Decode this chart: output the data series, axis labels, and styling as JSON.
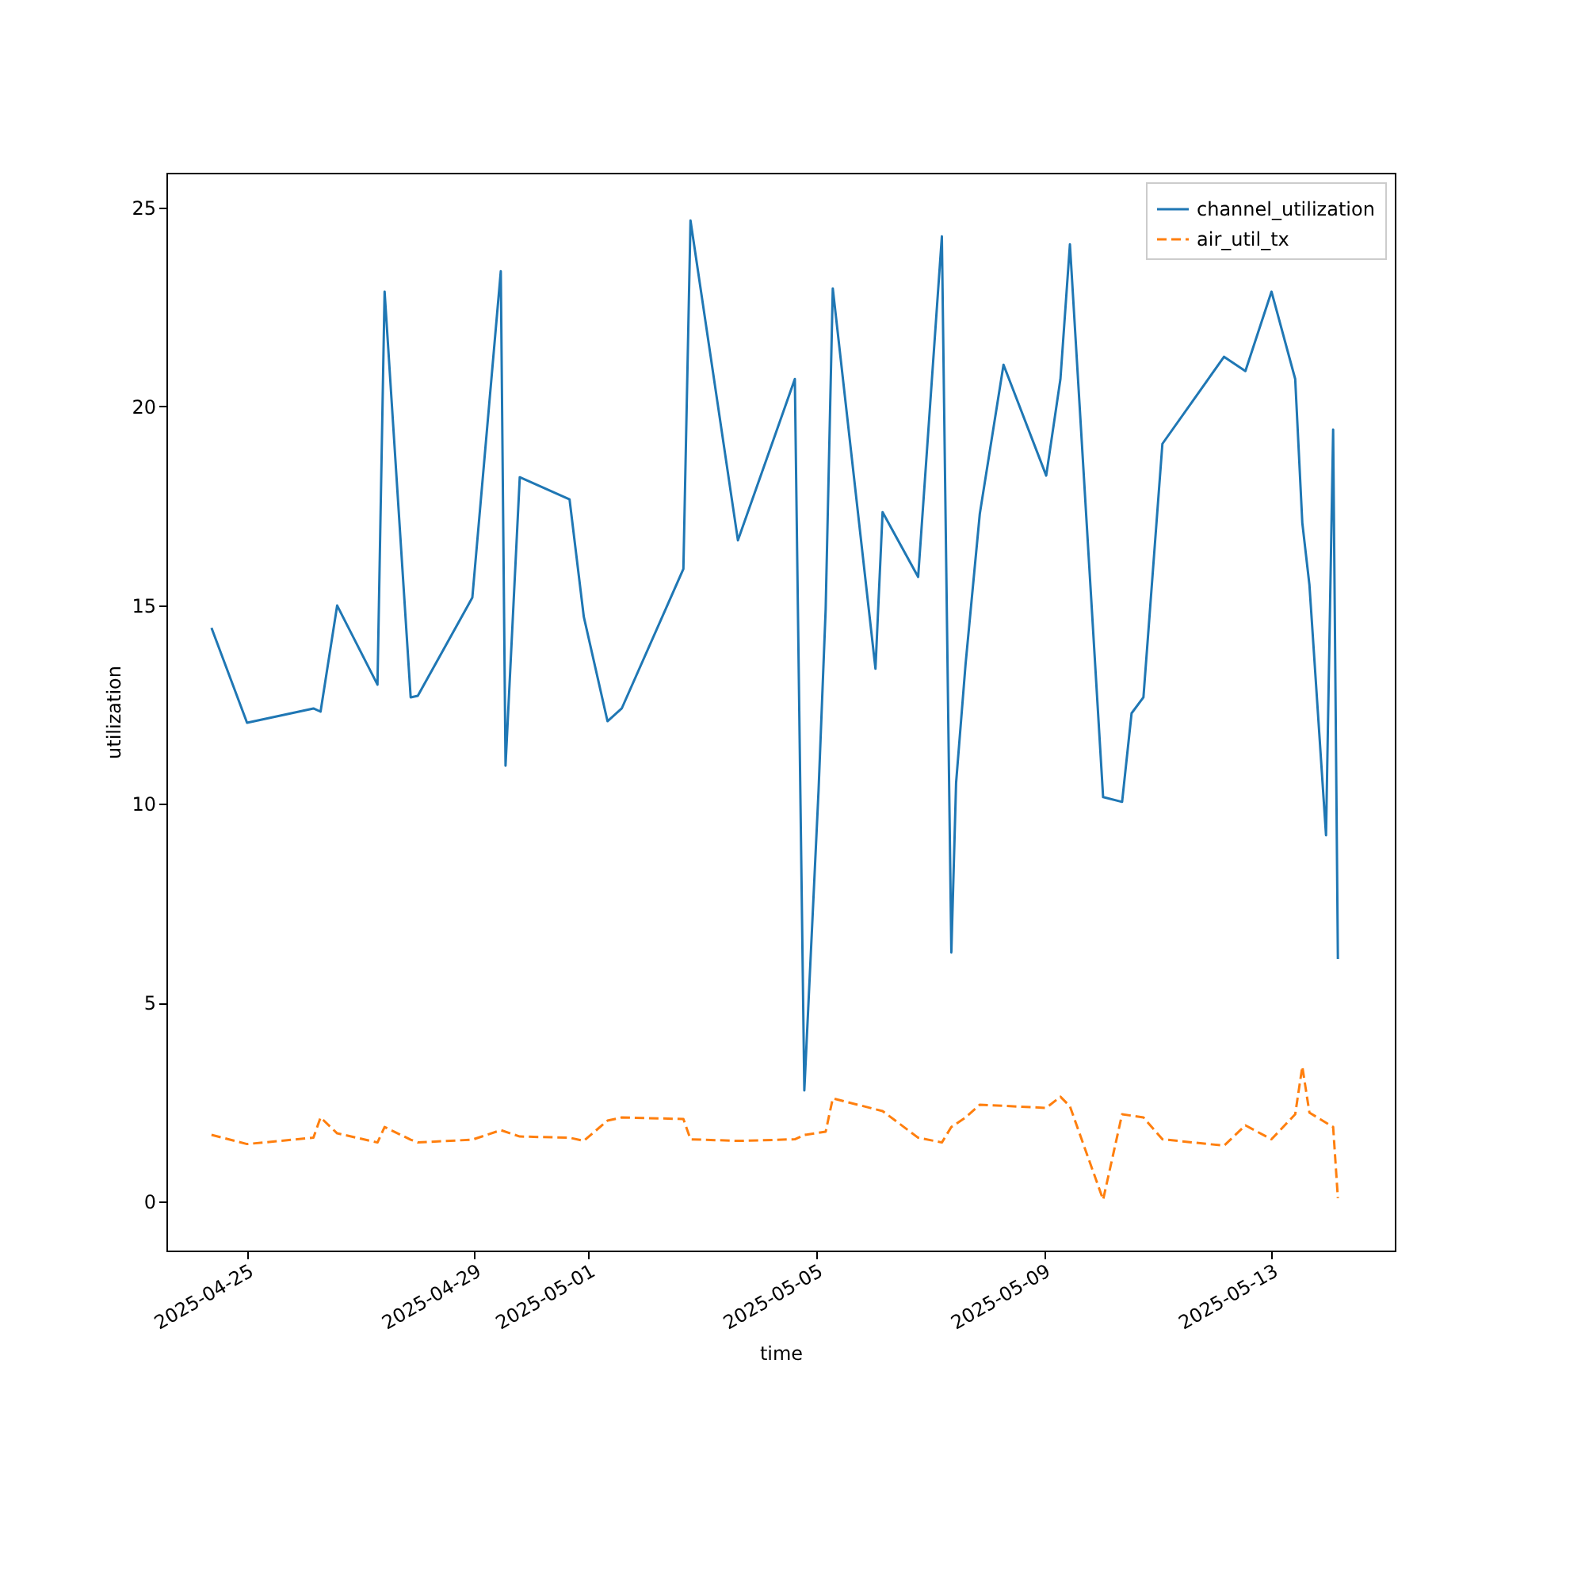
{
  "chart_data": {
    "type": "line",
    "xlabel": "time",
    "ylabel": "utilization",
    "legend": "top right",
    "grid": false,
    "xlim": [
      "2025-04-23T14:00",
      "2025-05-15T04:00"
    ],
    "ylim": [
      -1.24,
      25.88
    ],
    "xticks": [
      {
        "value": "2025-04-25",
        "label": "2025-04-25"
      },
      {
        "value": "2025-04-29",
        "label": "2025-04-29"
      },
      {
        "value": "2025-05-01",
        "label": "2025-05-01"
      },
      {
        "value": "2025-05-05",
        "label": "2025-05-05"
      },
      {
        "value": "2025-05-09",
        "label": "2025-05-09"
      },
      {
        "value": "2025-05-13",
        "label": "2025-05-13"
      }
    ],
    "yticks": [
      0,
      5,
      10,
      15,
      20,
      25
    ],
    "series": [
      {
        "name": "channel_utilization",
        "color": "#1f77b4",
        "line_style": "solid",
        "x": [
          "2025-04-24T09:00",
          "2025-04-25T00:00",
          "2025-04-26T04:00",
          "2025-04-26T07:00",
          "2025-04-26T14:00",
          "2025-04-27T07:00",
          "2025-04-27T10:00",
          "2025-04-27T21:00",
          "2025-04-28T00:00",
          "2025-04-28T23:00",
          "2025-04-29T11:00",
          "2025-04-29T13:00",
          "2025-04-29T19:00",
          "2025-04-30T16:00",
          "2025-04-30T22:00",
          "2025-05-01T08:00",
          "2025-05-01T14:00",
          "2025-05-02T16:00",
          "2025-05-02T19:00",
          "2025-05-03T15:00",
          "2025-05-04T15:00",
          "2025-05-04T19:00",
          "2025-05-05T01:00",
          "2025-05-05T04:00",
          "2025-05-05T07:00",
          "2025-05-06T01:00",
          "2025-05-06T04:00",
          "2025-05-06T19:00",
          "2025-05-07T05:00",
          "2025-05-07T09:00",
          "2025-05-07T11:00",
          "2025-05-07T15:00",
          "2025-05-07T21:00",
          "2025-05-08T07:00",
          "2025-05-09T01:00",
          "2025-05-09T07:00",
          "2025-05-09T11:00",
          "2025-05-10T01:00",
          "2025-05-10T09:00",
          "2025-05-10T13:00",
          "2025-05-10T18:00",
          "2025-05-11T02:00",
          "2025-05-12T04:00",
          "2025-05-12T13:00",
          "2025-05-13T00:00",
          "2025-05-13T10:00",
          "2025-05-13T13:00",
          "2025-05-13T16:00",
          "2025-05-13T23:00",
          "2025-05-14T02:00",
          "2025-05-14T04:00"
        ],
        "values": [
          14.43,
          12.04,
          12.4,
          12.32,
          14.99,
          13.0,
          22.89,
          12.68,
          12.72,
          15.19,
          23.4,
          10.96,
          18.22,
          17.66,
          14.71,
          12.08,
          12.4,
          15.91,
          24.68,
          16.63,
          20.69,
          2.79,
          10.33,
          14.9,
          22.97,
          13.4,
          17.34,
          15.71,
          24.28,
          6.26,
          10.53,
          13.52,
          17.3,
          21.05,
          18.26,
          20.69,
          24.08,
          10.17,
          10.05,
          12.28,
          12.68,
          19.06,
          21.25,
          20.89,
          22.89,
          20.69,
          17.07,
          15.51,
          9.21,
          19.42,
          6.1
        ]
      },
      {
        "name": "air_util_tx",
        "color": "#ff7f0e",
        "line_style": "dashed",
        "x": [
          "2025-04-24T09:00",
          "2025-04-25T00:00",
          "2025-04-26T04:00",
          "2025-04-26T07:00",
          "2025-04-26T14:00",
          "2025-04-27T07:00",
          "2025-04-27T10:00",
          "2025-04-27T21:00",
          "2025-04-28T00:00",
          "2025-04-28T23:00",
          "2025-04-29T11:00",
          "2025-04-29T19:00",
          "2025-04-30T16:00",
          "2025-04-30T22:00",
          "2025-05-01T08:00",
          "2025-05-01T14:00",
          "2025-05-02T16:00",
          "2025-05-02T19:00",
          "2025-05-03T15:00",
          "2025-05-04T15:00",
          "2025-05-04T19:00",
          "2025-05-05T04:00",
          "2025-05-05T07:00",
          "2025-05-06T04:00",
          "2025-05-06T19:00",
          "2025-05-07T05:00",
          "2025-05-07T09:00",
          "2025-05-07T15:00",
          "2025-05-07T21:00",
          "2025-05-09T01:00",
          "2025-05-09T07:00",
          "2025-05-09T11:00",
          "2025-05-10T01:00",
          "2025-05-10T09:00",
          "2025-05-10T18:00",
          "2025-05-11T02:00",
          "2025-05-12T04:00",
          "2025-05-12T13:00",
          "2025-05-13T00:00",
          "2025-05-13T10:00",
          "2025-05-13T13:00",
          "2025-05-13T16:00",
          "2025-05-14T02:00",
          "2025-05-14T04:00"
        ],
        "values": [
          1.67,
          1.44,
          1.6,
          2.11,
          1.71,
          1.48,
          1.87,
          1.55,
          1.48,
          1.55,
          1.79,
          1.63,
          1.6,
          1.52,
          2.03,
          2.11,
          2.07,
          1.56,
          1.52,
          1.56,
          1.67,
          1.75,
          2.59,
          2.27,
          1.6,
          1.48,
          1.87,
          2.11,
          2.43,
          2.35,
          2.63,
          2.39,
          0.04,
          2.19,
          2.11,
          1.56,
          1.4,
          1.91,
          1.56,
          2.19,
          3.39,
          2.23,
          1.87,
          0.08
        ]
      }
    ]
  }
}
